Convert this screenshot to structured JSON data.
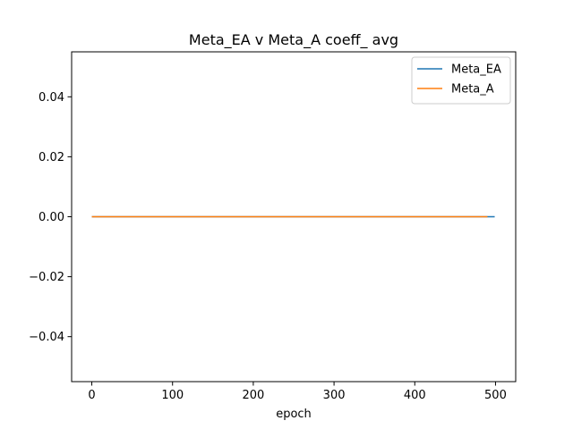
{
  "chart_data": {
    "type": "line",
    "title": "Meta_EA v Meta_A coeff_ avg",
    "xlabel": "epoch",
    "ylabel": "",
    "xlim": [
      -25,
      525
    ],
    "ylim": [
      -0.055,
      0.055
    ],
    "x_ticks": [
      0,
      100,
      200,
      300,
      400,
      500
    ],
    "x_tick_labels": [
      "0",
      "100",
      "200",
      "300",
      "400",
      "500"
    ],
    "y_ticks": [
      -0.04,
      -0.02,
      0.0,
      0.02,
      0.04
    ],
    "y_tick_labels": [
      "−0.04",
      "−0.02",
      "0.00",
      "0.02",
      "0.04"
    ],
    "grid": false,
    "legend_position": "top-right",
    "series": [
      {
        "name": "Meta_EA",
        "color": "#1f77b4",
        "x": [
          0,
          499
        ],
        "y": [
          0.0,
          0.0
        ]
      },
      {
        "name": "Meta_A",
        "color": "#ff7f0e",
        "x": [
          0,
          490
        ],
        "y": [
          0.0,
          0.0
        ]
      }
    ]
  }
}
